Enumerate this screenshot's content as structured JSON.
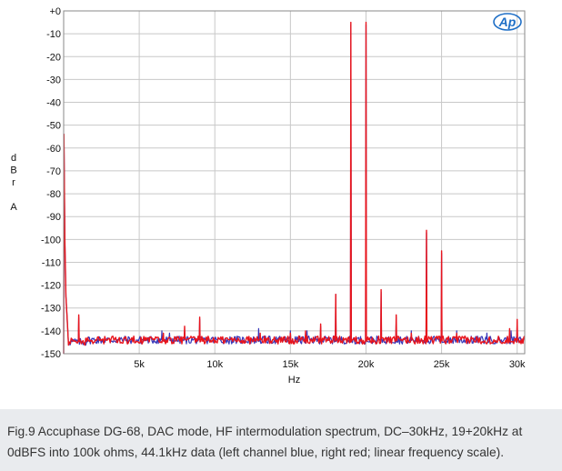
{
  "figure": {
    "logo_text": "Ap",
    "caption": "Fig.9 Accuphase DG-68, DAC mode, HF intermodulation spectrum, DC–30kHz, 19+20kHz at 0dBFS into 100k ohms, 44.1kHz data (left channel blue, right red; linear frequency scale)."
  },
  "chart_data": {
    "type": "line",
    "title": "",
    "xlabel": "Hz",
    "ylabel_letters": [
      "d",
      "B",
      "r",
      "",
      "A"
    ],
    "xlim": [
      0,
      30500
    ],
    "ylim": [
      -150,
      0
    ],
    "grid": true,
    "x_ticks": [
      {
        "value": 5000,
        "label": "5k"
      },
      {
        "value": 10000,
        "label": "10k"
      },
      {
        "value": 15000,
        "label": "15k"
      },
      {
        "value": 20000,
        "label": "20k"
      },
      {
        "value": 25000,
        "label": "25k"
      },
      {
        "value": 30000,
        "label": "30k"
      }
    ],
    "y_ticks": [
      {
        "value": 0,
        "label": "+0"
      },
      {
        "value": -10,
        "label": "-10"
      },
      {
        "value": -20,
        "label": "-20"
      },
      {
        "value": -30,
        "label": "-30"
      },
      {
        "value": -40,
        "label": "-40"
      },
      {
        "value": -50,
        "label": "-50"
      },
      {
        "value": -60,
        "label": "-60"
      },
      {
        "value": -70,
        "label": "-70"
      },
      {
        "value": -80,
        "label": "-80"
      },
      {
        "value": -90,
        "label": "-90"
      },
      {
        "value": -100,
        "label": "-100"
      },
      {
        "value": -110,
        "label": "-110"
      },
      {
        "value": -120,
        "label": "-120"
      },
      {
        "value": -130,
        "label": "-130"
      },
      {
        "value": -140,
        "label": "-140"
      },
      {
        "value": -150,
        "label": "-150"
      }
    ],
    "noise_floor": -144,
    "series": [
      {
        "name": "Left channel",
        "color": "#2b2bb5",
        "peaks": [
          [
            20,
            -54
          ],
          [
            1000,
            -134
          ],
          [
            6500,
            -140
          ],
          [
            7000,
            -141
          ],
          [
            8000,
            -140
          ],
          [
            9000,
            -135
          ],
          [
            12900,
            -139
          ],
          [
            15000,
            -140
          ],
          [
            16100,
            -140
          ],
          [
            17000,
            -138
          ],
          [
            18000,
            -124
          ],
          [
            19000,
            -6
          ],
          [
            20000,
            -6
          ],
          [
            21000,
            -123
          ],
          [
            22000,
            -134
          ],
          [
            23000,
            -140
          ],
          [
            24000,
            -97
          ],
          [
            25000,
            -106
          ],
          [
            26000,
            -140
          ],
          [
            28000,
            -141
          ],
          [
            29600,
            -140
          ],
          [
            30000,
            -136
          ]
        ]
      },
      {
        "name": "Right channel",
        "color": "#e8141c",
        "peaks": [
          [
            20,
            -54
          ],
          [
            1000,
            -133
          ],
          [
            6600,
            -141
          ],
          [
            8000,
            -138
          ],
          [
            9000,
            -134
          ],
          [
            13000,
            -141
          ],
          [
            15000,
            -141
          ],
          [
            16000,
            -140
          ],
          [
            17000,
            -137
          ],
          [
            18000,
            -124
          ],
          [
            19000,
            -5
          ],
          [
            20000,
            -5
          ],
          [
            21000,
            -122
          ],
          [
            22000,
            -133
          ],
          [
            23000,
            -141
          ],
          [
            24000,
            -96
          ],
          [
            25000,
            -105
          ],
          [
            26000,
            -141
          ],
          [
            29500,
            -139
          ],
          [
            30000,
            -135
          ]
        ]
      }
    ]
  }
}
